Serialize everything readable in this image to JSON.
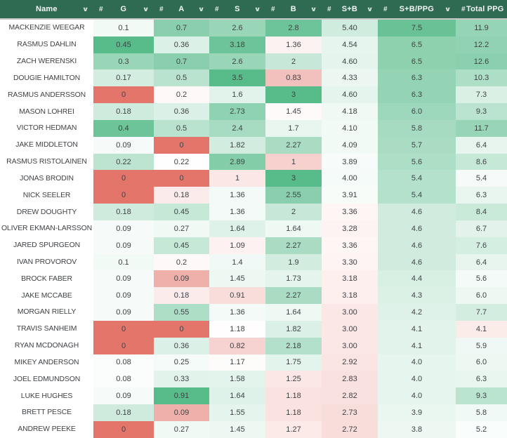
{
  "header": {
    "hash_symbol": "#",
    "sort_icon": "∨",
    "columns": [
      {
        "key": "name",
        "label": "Name",
        "hash": false,
        "chevron": true
      },
      {
        "key": "g",
        "label": "G",
        "hash": true,
        "chevron": true
      },
      {
        "key": "a",
        "label": "A",
        "hash": true,
        "chevron": true
      },
      {
        "key": "s",
        "label": "S",
        "hash": true,
        "chevron": true
      },
      {
        "key": "b",
        "label": "B",
        "hash": true,
        "chevron": true
      },
      {
        "key": "sb",
        "label": "S+B",
        "hash": true,
        "chevron": true
      },
      {
        "key": "sbppg",
        "label": "S+B/PPG",
        "hash": true,
        "chevron": true
      },
      {
        "key": "tppg",
        "label": "Total PPG",
        "hash": true,
        "chevron": false
      }
    ]
  },
  "colors": {
    "header_bg": "#2F6B53",
    "header_text": "#F4F7F5",
    "divider": "#C9C9C9",
    "row_text": "#3F4245",
    "name_bg": "#FFFFFF"
  },
  "heatmap": {
    "red": "#E4756B",
    "white": "#FFFFFF",
    "green": "#57BB8A",
    "anchors": {
      "g": [
        0,
        0.07,
        0.45
      ],
      "a": [
        0,
        0.21,
        0.91
      ],
      "s": [
        0,
        1.2,
        3.5
      ],
      "b": [
        0,
        1.5,
        3.0
      ],
      "sb": [
        0,
        3.6,
        10.0
      ],
      "sbppg": [
        0,
        3.3,
        8.0
      ],
      "tppg": [
        0,
        4.8,
        16.0
      ]
    }
  },
  "rows": [
    {
      "name": "MACKENZIE WEEGAR",
      "g": "0.1",
      "a": "0.7",
      "s": "2.6",
      "b": "2.8",
      "sb": "5.40",
      "sbppg": "7.5",
      "tppg": "11.9"
    },
    {
      "name": "RASMUS DAHLIN",
      "g": "0.45",
      "a": "0.36",
      "s": "3.18",
      "b": "1.36",
      "sb": "4.54",
      "sbppg": "6.5",
      "tppg": "12.2"
    },
    {
      "name": "ZACH WERENSKI",
      "g": "0.3",
      "a": "0.7",
      "s": "2.6",
      "b": "2",
      "sb": "4.60",
      "sbppg": "6.5",
      "tppg": "12.6"
    },
    {
      "name": "DOUGIE HAMILTON",
      "g": "0.17",
      "a": "0.5",
      "s": "3.5",
      "b": "0.83",
      "sb": "4.33",
      "sbppg": "6.3",
      "tppg": "10.3"
    },
    {
      "name": "RASMUS ANDERSSON",
      "g": "0",
      "a": "0.2",
      "s": "1.6",
      "b": "3",
      "sb": "4.60",
      "sbppg": "6.3",
      "tppg": "7.3"
    },
    {
      "name": "MASON LOHREI",
      "g": "0.18",
      "a": "0.36",
      "s": "2.73",
      "b": "1.45",
      "sb": "4.18",
      "sbppg": "6.0",
      "tppg": "9.3"
    },
    {
      "name": "VICTOR HEDMAN",
      "g": "0.4",
      "a": "0.5",
      "s": "2.4",
      "b": "1.7",
      "sb": "4.10",
      "sbppg": "5.8",
      "tppg": "11.7"
    },
    {
      "name": "JAKE MIDDLETON",
      "g": "0.09",
      "a": "0",
      "s": "1.82",
      "b": "2.27",
      "sb": "4.09",
      "sbppg": "5.7",
      "tppg": "6.4"
    },
    {
      "name": "RASMUS RISTOLAINEN",
      "g": "0.22",
      "a": "0.22",
      "s": "2.89",
      "b": "1",
      "sb": "3.89",
      "sbppg": "5.6",
      "tppg": "8.6"
    },
    {
      "name": "JONAS BRODIN",
      "g": "0",
      "a": "0",
      "s": "1",
      "b": "3",
      "sb": "4.00",
      "sbppg": "5.4",
      "tppg": "5.4"
    },
    {
      "name": "NICK SEELER",
      "g": "0",
      "a": "0.18",
      "s": "1.36",
      "b": "2.55",
      "sb": "3.91",
      "sbppg": "5.4",
      "tppg": "6.3"
    },
    {
      "name": "DREW DOUGHTY",
      "g": "0.18",
      "a": "0.45",
      "s": "1.36",
      "b": "2",
      "sb": "3.36",
      "sbppg": "4.6",
      "tppg": "8.4"
    },
    {
      "name": "OLIVER EKMAN-LARSSON",
      "g": "0.09",
      "a": "0.27",
      "s": "1.64",
      "b": "1.64",
      "sb": "3.28",
      "sbppg": "4.6",
      "tppg": "6.7"
    },
    {
      "name": "JARED SPURGEON",
      "g": "0.09",
      "a": "0.45",
      "s": "1.09",
      "b": "2.27",
      "sb": "3.36",
      "sbppg": "4.6",
      "tppg": "7.6"
    },
    {
      "name": "IVAN PROVOROV",
      "g": "0.1",
      "a": "0.2",
      "s": "1.4",
      "b": "1.9",
      "sb": "3.30",
      "sbppg": "4.6",
      "tppg": "6.4"
    },
    {
      "name": "BROCK FABER",
      "g": "0.09",
      "a": "0.09",
      "s": "1.45",
      "b": "1.73",
      "sb": "3.18",
      "sbppg": "4.4",
      "tppg": "5.6"
    },
    {
      "name": "JAKE MCCABE",
      "g": "0.09",
      "a": "0.18",
      "s": "0.91",
      "b": "2.27",
      "sb": "3.18",
      "sbppg": "4.3",
      "tppg": "6.0"
    },
    {
      "name": "MORGAN RIELLY",
      "g": "0.09",
      "a": "0.55",
      "s": "1.36",
      "b": "1.64",
      "sb": "3.00",
      "sbppg": "4.2",
      "tppg": "7.7"
    },
    {
      "name": "TRAVIS SANHEIM",
      "g": "0",
      "a": "0",
      "s": "1.18",
      "b": "1.82",
      "sb": "3.00",
      "sbppg": "4.1",
      "tppg": "4.1"
    },
    {
      "name": "RYAN MCDONAGH",
      "g": "0",
      "a": "0.36",
      "s": "0.82",
      "b": "2.18",
      "sb": "3.00",
      "sbppg": "4.1",
      "tppg": "5.9"
    },
    {
      "name": "MIKEY ANDERSON",
      "g": "0.08",
      "a": "0.25",
      "s": "1.17",
      "b": "1.75",
      "sb": "2.92",
      "sbppg": "4.0",
      "tppg": "6.0"
    },
    {
      "name": "JOEL EDMUNDSON",
      "g": "0.08",
      "a": "0.33",
      "s": "1.58",
      "b": "1.25",
      "sb": "2.83",
      "sbppg": "4.0",
      "tppg": "6.3"
    },
    {
      "name": "LUKE HUGHES",
      "g": "0.09",
      "a": "0.91",
      "s": "1.64",
      "b": "1.18",
      "sb": "2.82",
      "sbppg": "4.0",
      "tppg": "9.3"
    },
    {
      "name": "BRETT PESCE",
      "g": "0.18",
      "a": "0.09",
      "s": "1.55",
      "b": "1.18",
      "sb": "2.73",
      "sbppg": "3.9",
      "tppg": "5.8"
    },
    {
      "name": "ANDREW PEEKE",
      "g": "0",
      "a": "0.27",
      "s": "1.45",
      "b": "1.27",
      "sb": "2.72",
      "sbppg": "3.8",
      "tppg": "5.2"
    }
  ]
}
